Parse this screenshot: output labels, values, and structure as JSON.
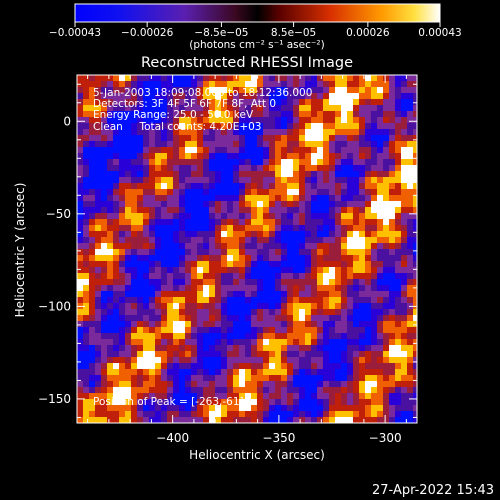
{
  "chart_data": {
    "type": "heatmap",
    "title": "Reconstructed RHESSI Image",
    "xlabel": "Heliocentric X (arcsec)",
    "ylabel": "Heliocentric Y (arcsec)",
    "xlim": [
      -445,
      -285
    ],
    "ylim": [
      -163,
      25
    ],
    "x_ticks": [
      -400,
      -350,
      -300
    ],
    "y_ticks": [
      0,
      -50,
      -100,
      -150
    ],
    "x_tick_labels": [
      "−400",
      "−350",
      "−300"
    ],
    "y_tick_labels": [
      "0",
      "−50",
      "−100",
      "−150"
    ],
    "colorbar": {
      "range": [
        -0.00043,
        0.00043
      ],
      "tick_values": [
        -0.00043,
        -0.00026,
        -8.5e-05,
        8.5e-05,
        0.00026,
        0.00043
      ],
      "tick_labels": [
        "−0.00043",
        "−0.00026",
        "−8.5e−05",
        "8.5e−05",
        "0.00026",
        "0.00043"
      ],
      "units_label": "(photons cm⁻² s⁻¹ asec⁻²)"
    },
    "grid": false
  },
  "annotations": {
    "time_range": "5-Jan-2003 18:09:08.000 to 18:12:36.000",
    "detectors": "Detectors: 3F 4F 5F 6F 7F 8F, Att 0",
    "energy_range": "Energy Range: 25.0 - 50.0 keV",
    "method_counts": "Clean     Total counts: 4.20E+03",
    "peak_position": "Position of Peak = [-263,-61]"
  },
  "footer": {
    "date": "27-Apr-2022 15:43"
  },
  "colors": {
    "background": "#000000",
    "foreground": "#ffffff",
    "colormap": [
      "#0010ff",
      "#2a00d8",
      "#4a10a0",
      "#7a2a9a",
      "#9a1e3c",
      "#c0200a",
      "#f06000",
      "#ffc000",
      "#ffffff"
    ]
  }
}
